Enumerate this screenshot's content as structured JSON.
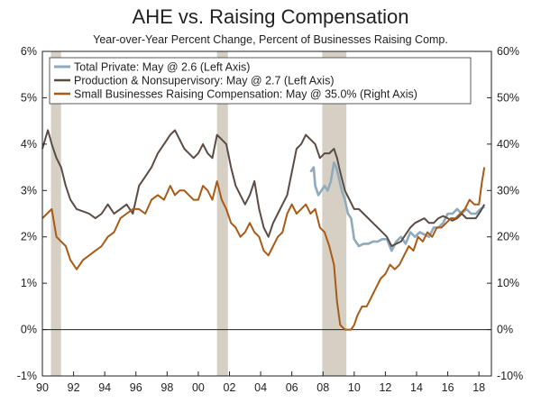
{
  "chart_data": {
    "type": "line",
    "title": "AHE vs. Raising Compensation",
    "subtitle": "Year-over-Year Percent Change, Percent of Businesses Raising Comp.",
    "left_axis": {
      "ylim": [
        -1,
        6
      ],
      "ticks": [
        "-1%",
        "0%",
        "1%",
        "2%",
        "3%",
        "4%",
        "5%",
        "6%"
      ]
    },
    "right_axis": {
      "ylim": [
        -10,
        60
      ],
      "ticks": [
        "-10%",
        "0%",
        "10%",
        "20%",
        "30%",
        "40%",
        "50%",
        "60%"
      ]
    },
    "x_axis": {
      "xlim": [
        1990,
        2018.8
      ],
      "ticks": [
        "90",
        "92",
        "94",
        "96",
        "98",
        "00",
        "02",
        "04",
        "06",
        "08",
        "10",
        "12",
        "14",
        "16",
        "18"
      ]
    },
    "recessions": [
      [
        1990.55,
        1991.2
      ],
      [
        2001.2,
        2001.9
      ],
      [
        2007.95,
        2009.5
      ]
    ],
    "legend_position": "top-left",
    "series": [
      {
        "name": "Total Private: May @ 2.6 (Left Axis)",
        "axis": "left",
        "color": "#8eaabd",
        "x": [
          2007.2,
          2007.4,
          2007.5,
          2007.7,
          2007.9,
          2008.1,
          2008.3,
          2008.5,
          2008.7,
          2008.85,
          2009.0,
          2009.2,
          2009.4,
          2009.6,
          2009.8,
          2010.0,
          2010.3,
          2010.6,
          2010.9,
          2011.2,
          2011.5,
          2011.8,
          2012.1,
          2012.4,
          2012.7,
          2013.0,
          2013.3,
          2013.6,
          2013.9,
          2014.2,
          2014.5,
          2014.8,
          2015.1,
          2015.4,
          2015.7,
          2016.0,
          2016.3,
          2016.6,
          2016.9,
          2017.2,
          2017.5,
          2017.8,
          2018.1,
          2018.35
        ],
        "values": [
          3.4,
          3.5,
          3.1,
          2.9,
          3.0,
          3.1,
          3.0,
          3.2,
          3.6,
          3.5,
          3.3,
          3.0,
          2.8,
          2.5,
          2.4,
          1.95,
          1.8,
          1.85,
          1.85,
          1.9,
          1.9,
          1.95,
          1.95,
          1.7,
          1.9,
          2.0,
          1.85,
          2.1,
          2.0,
          2.1,
          2.05,
          2.0,
          2.2,
          2.2,
          2.3,
          2.5,
          2.5,
          2.6,
          2.5,
          2.6,
          2.5,
          2.5,
          2.6,
          2.65
        ]
      },
      {
        "name": "Production & Nonsupervisory: May @ 2.7 (Left Axis)",
        "axis": "left",
        "color": "#5a4c45",
        "x": [
          1990.0,
          1990.35,
          1990.6,
          1990.9,
          1991.2,
          1991.5,
          1991.8,
          1992.2,
          1992.6,
          1993.0,
          1993.4,
          1993.8,
          1994.2,
          1994.6,
          1995.0,
          1995.4,
          1995.8,
          1996.2,
          1996.6,
          1997.0,
          1997.4,
          1997.8,
          1998.2,
          1998.5,
          1998.8,
          1999.1,
          1999.4,
          1999.7,
          2000.0,
          2000.3,
          2000.6,
          2000.9,
          2001.2,
          2001.5,
          2001.8,
          2002.1,
          2002.4,
          2002.7,
          2003.0,
          2003.3,
          2003.6,
          2003.9,
          2004.2,
          2004.5,
          2004.8,
          2005.1,
          2005.4,
          2005.7,
          2006.0,
          2006.3,
          2006.6,
          2006.9,
          2007.2,
          2007.5,
          2007.8,
          2008.1,
          2008.4,
          2008.7,
          2008.9,
          2009.1,
          2009.4,
          2009.7,
          2010.0,
          2010.3,
          2010.6,
          2010.9,
          2011.2,
          2011.5,
          2011.8,
          2012.1,
          2012.4,
          2012.7,
          2013.0,
          2013.3,
          2013.6,
          2013.9,
          2014.2,
          2014.5,
          2014.8,
          2015.1,
          2015.4,
          2015.7,
          2016.0,
          2016.3,
          2016.6,
          2016.9,
          2017.2,
          2017.5,
          2017.8,
          2018.1,
          2018.35
        ],
        "values": [
          3.9,
          4.3,
          4.0,
          3.7,
          3.5,
          3.1,
          2.8,
          2.6,
          2.55,
          2.5,
          2.4,
          2.5,
          2.7,
          2.5,
          2.6,
          2.7,
          2.5,
          3.1,
          3.3,
          3.5,
          3.8,
          4.0,
          4.2,
          4.3,
          4.1,
          3.9,
          3.8,
          3.7,
          3.8,
          4.0,
          3.8,
          3.7,
          4.2,
          4.1,
          4.0,
          3.5,
          3.1,
          2.9,
          2.7,
          2.9,
          3.2,
          2.6,
          2.2,
          2.0,
          2.3,
          2.5,
          2.7,
          2.9,
          3.4,
          3.9,
          4.0,
          4.2,
          4.1,
          4.0,
          3.7,
          3.8,
          3.8,
          3.9,
          3.7,
          3.4,
          3.0,
          2.8,
          2.6,
          2.6,
          2.5,
          2.4,
          2.3,
          2.2,
          2.1,
          2.0,
          1.8,
          1.85,
          1.9,
          2.05,
          2.2,
          2.3,
          2.35,
          2.4,
          2.3,
          2.3,
          2.4,
          2.45,
          2.4,
          2.35,
          2.4,
          2.5,
          2.4,
          2.4,
          2.4,
          2.55,
          2.7
        ]
      },
      {
        "name": "Small Businesses Raising Compensation: May @ 35.0% (Right Axis)",
        "axis": "right",
        "color": "#a85a16",
        "x": [
          1990.0,
          1990.3,
          1990.6,
          1990.9,
          1991.2,
          1991.5,
          1991.8,
          1992.2,
          1992.6,
          1993.0,
          1993.4,
          1993.8,
          1994.2,
          1994.6,
          1995.0,
          1995.4,
          1995.8,
          1996.2,
          1996.6,
          1997.0,
          1997.4,
          1997.8,
          1998.2,
          1998.5,
          1998.8,
          1999.1,
          1999.4,
          1999.7,
          2000.0,
          2000.3,
          2000.6,
          2000.9,
          2001.2,
          2001.5,
          2001.8,
          2002.1,
          2002.4,
          2002.7,
          2003.0,
          2003.3,
          2003.6,
          2003.9,
          2004.2,
          2004.5,
          2004.8,
          2005.1,
          2005.4,
          2005.7,
          2006.0,
          2006.3,
          2006.6,
          2006.9,
          2007.2,
          2007.5,
          2007.8,
          2008.1,
          2008.4,
          2008.7,
          2008.9,
          2009.1,
          2009.4,
          2009.6,
          2009.8,
          2010.0,
          2010.2,
          2010.5,
          2010.8,
          2011.1,
          2011.4,
          2011.7,
          2012.0,
          2012.3,
          2012.6,
          2012.9,
          2013.2,
          2013.5,
          2013.8,
          2014.1,
          2014.4,
          2014.7,
          2015.0,
          2015.3,
          2015.6,
          2015.9,
          2016.2,
          2016.5,
          2016.8,
          2017.1,
          2017.4,
          2017.7,
          2018.0,
          2018.2,
          2018.35
        ],
        "values": [
          24,
          25,
          26,
          20,
          19,
          18,
          15,
          13,
          15,
          16,
          17,
          18,
          20,
          21,
          24,
          25,
          26,
          26,
          25,
          28,
          29,
          28,
          31,
          29,
          30,
          30,
          29,
          28,
          28,
          31,
          30,
          28,
          32,
          28,
          26,
          23,
          22,
          20,
          21,
          23,
          21,
          20,
          17,
          16,
          18,
          20,
          21,
          25,
          27,
          25,
          26,
          27,
          25,
          26,
          22,
          21,
          18,
          14,
          6,
          1,
          0,
          0,
          0,
          1,
          3,
          5,
          5,
          7,
          9,
          11,
          12,
          14,
          13,
          14,
          16,
          18,
          17,
          20,
          19,
          21,
          20,
          22,
          22,
          23,
          24,
          24,
          25,
          26,
          28,
          27,
          27,
          32,
          35
        ]
      }
    ]
  }
}
